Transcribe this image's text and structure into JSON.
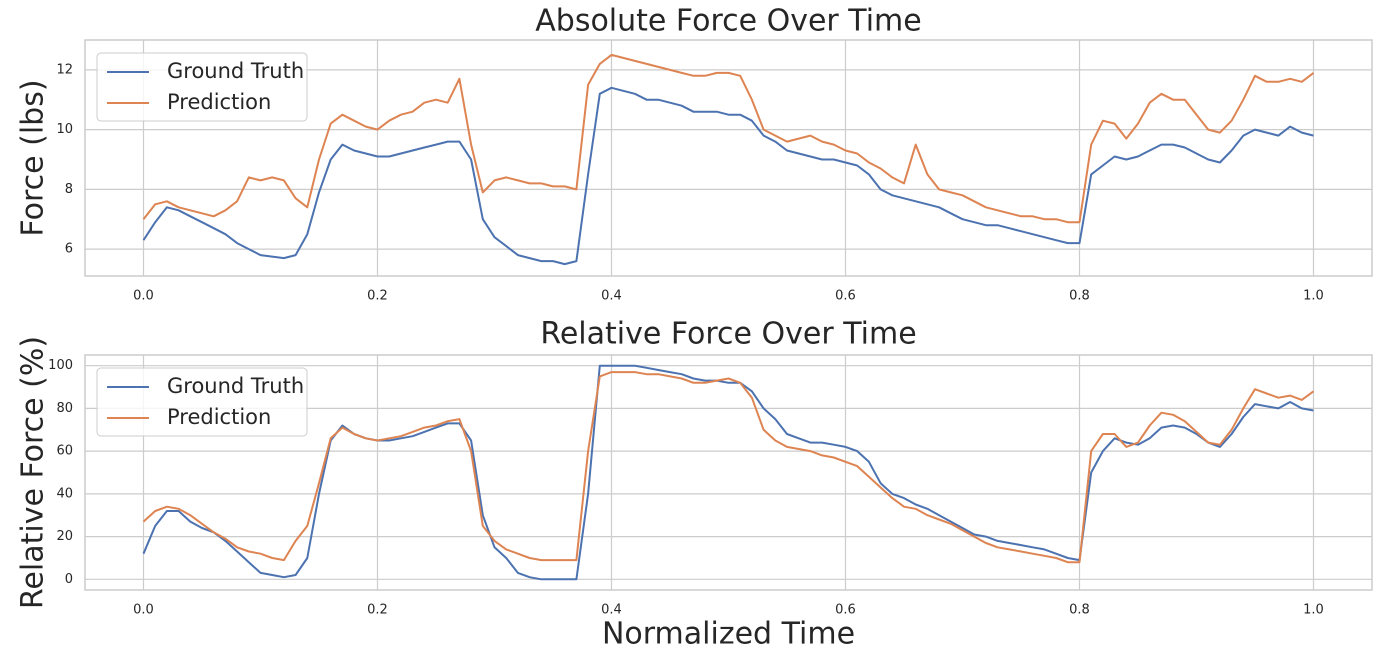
{
  "chart_data": [
    {
      "type": "line",
      "title": "Absolute Force Over Time",
      "ylabel": "Force (lbs)",
      "x": [
        0,
        0.01,
        0.02,
        0.03,
        0.04,
        0.05,
        0.06,
        0.07,
        0.08,
        0.09,
        0.1,
        0.11,
        0.12,
        0.13,
        0.14,
        0.15,
        0.16,
        0.17,
        0.18,
        0.19,
        0.2,
        0.21,
        0.22,
        0.23,
        0.24,
        0.25,
        0.26,
        0.27,
        0.28,
        0.29,
        0.3,
        0.31,
        0.32,
        0.33,
        0.34,
        0.35,
        0.36,
        0.37,
        0.38,
        0.39,
        0.4,
        0.41,
        0.42,
        0.43,
        0.44,
        0.45,
        0.46,
        0.47,
        0.48,
        0.49,
        0.5,
        0.51,
        0.52,
        0.53,
        0.54,
        0.55,
        0.56,
        0.57,
        0.58,
        0.59,
        0.6,
        0.61,
        0.62,
        0.63,
        0.64,
        0.65,
        0.66,
        0.67,
        0.68,
        0.69,
        0.7,
        0.71,
        0.72,
        0.73,
        0.74,
        0.75,
        0.76,
        0.77,
        0.78,
        0.79,
        0.8,
        0.81,
        0.82,
        0.83,
        0.84,
        0.85,
        0.86,
        0.87,
        0.88,
        0.89,
        0.9,
        0.91,
        0.92,
        0.93,
        0.94,
        0.95,
        0.96,
        0.97,
        0.98,
        0.99,
        1
      ],
      "series": [
        {
          "name": "Ground Truth",
          "color": "#4c72b0",
          "values": [
            6.3,
            6.9,
            7.4,
            7.3,
            7.1,
            6.9,
            6.7,
            6.5,
            6.2,
            6.0,
            5.8,
            5.75,
            5.7,
            5.8,
            6.5,
            7.9,
            9.0,
            9.5,
            9.3,
            9.2,
            9.1,
            9.1,
            9.2,
            9.3,
            9.4,
            9.5,
            9.6,
            9.6,
            9.0,
            7.0,
            6.4,
            6.1,
            5.8,
            5.7,
            5.6,
            5.6,
            5.5,
            5.6,
            8.5,
            11.2,
            11.4,
            11.3,
            11.2,
            11.0,
            11.0,
            10.9,
            10.8,
            10.6,
            10.6,
            10.6,
            10.5,
            10.5,
            10.3,
            9.8,
            9.6,
            9.3,
            9.2,
            9.1,
            9.0,
            9.0,
            8.9,
            8.8,
            8.5,
            8.0,
            7.8,
            7.7,
            7.6,
            7.5,
            7.4,
            7.2,
            7.0,
            6.9,
            6.8,
            6.8,
            6.7,
            6.6,
            6.5,
            6.4,
            6.3,
            6.2,
            6.2,
            8.5,
            8.8,
            9.1,
            9.0,
            9.1,
            9.3,
            9.5,
            9.5,
            9.4,
            9.2,
            9.0,
            8.9,
            9.3,
            9.8,
            10.0,
            9.9,
            9.8,
            10.1,
            9.9,
            9.8
          ]
        },
        {
          "name": "Prediction",
          "color": "#dd8452",
          "values": [
            7.0,
            7.5,
            7.6,
            7.4,
            7.3,
            7.2,
            7.1,
            7.3,
            7.6,
            8.4,
            8.3,
            8.4,
            8.3,
            7.7,
            7.4,
            9.0,
            10.2,
            10.5,
            10.3,
            10.1,
            10.0,
            10.3,
            10.5,
            10.6,
            10.9,
            11.0,
            10.9,
            11.7,
            9.5,
            7.9,
            8.3,
            8.4,
            8.3,
            8.2,
            8.2,
            8.1,
            8.1,
            8.0,
            11.5,
            12.2,
            12.5,
            12.4,
            12.3,
            12.2,
            12.1,
            12.0,
            11.9,
            11.8,
            11.8,
            11.9,
            11.9,
            11.8,
            11.0,
            10.0,
            9.8,
            9.6,
            9.7,
            9.8,
            9.6,
            9.5,
            9.3,
            9.2,
            8.9,
            8.7,
            8.4,
            8.2,
            9.5,
            8.5,
            8.0,
            7.9,
            7.8,
            7.6,
            7.4,
            7.3,
            7.2,
            7.1,
            7.1,
            7.0,
            7.0,
            6.9,
            6.9,
            9.5,
            10.3,
            10.2,
            9.7,
            10.2,
            10.9,
            11.2,
            11.0,
            11.0,
            10.5,
            10.0,
            9.9,
            10.3,
            11.0,
            11.8,
            11.6,
            11.6,
            11.7,
            11.6,
            11.9
          ]
        }
      ],
      "xlim": [
        -0.05,
        1.05
      ],
      "xticks": [
        {
          "value": 0,
          "label": "0.0"
        },
        0.2,
        0.4,
        0.6,
        0.8,
        {
          "value": 1,
          "label": "1.0"
        }
      ],
      "ylim": [
        5.1,
        13.0
      ],
      "yticks": [
        6,
        8,
        10,
        12
      ],
      "grid": true,
      "legend": "upper left"
    },
    {
      "type": "line",
      "title": "Relative Force Over Time",
      "ylabel": "Relative Force (%)",
      "xlabel": "Normalized Time",
      "x": [
        0,
        0.01,
        0.02,
        0.03,
        0.04,
        0.05,
        0.06,
        0.07,
        0.08,
        0.09,
        0.1,
        0.11,
        0.12,
        0.13,
        0.14,
        0.15,
        0.16,
        0.17,
        0.18,
        0.19,
        0.2,
        0.21,
        0.22,
        0.23,
        0.24,
        0.25,
        0.26,
        0.27,
        0.28,
        0.29,
        0.3,
        0.31,
        0.32,
        0.33,
        0.34,
        0.35,
        0.36,
        0.37,
        0.38,
        0.39,
        0.4,
        0.41,
        0.42,
        0.43,
        0.44,
        0.45,
        0.46,
        0.47,
        0.48,
        0.49,
        0.5,
        0.51,
        0.52,
        0.53,
        0.54,
        0.55,
        0.56,
        0.57,
        0.58,
        0.59,
        0.6,
        0.61,
        0.62,
        0.63,
        0.64,
        0.65,
        0.66,
        0.67,
        0.68,
        0.69,
        0.7,
        0.71,
        0.72,
        0.73,
        0.74,
        0.75,
        0.76,
        0.77,
        0.78,
        0.79,
        0.8,
        0.81,
        0.82,
        0.83,
        0.84,
        0.85,
        0.86,
        0.87,
        0.88,
        0.89,
        0.9,
        0.91,
        0.92,
        0.93,
        0.94,
        0.95,
        0.96,
        0.97,
        0.98,
        0.99,
        1
      ],
      "series": [
        {
          "name": "Ground Truth",
          "color": "#4c72b0",
          "values": [
            12,
            25,
            32,
            32,
            27,
            24,
            22,
            18,
            13,
            8,
            3,
            2,
            1,
            2,
            10,
            40,
            65,
            72,
            68,
            66,
            65,
            65,
            66,
            67,
            69,
            71,
            73,
            73,
            65,
            30,
            15,
            10,
            3,
            1,
            0,
            0,
            0,
            0,
            40,
            100,
            100,
            100,
            100,
            99,
            98,
            97,
            96,
            94,
            93,
            93,
            92,
            92,
            88,
            80,
            75,
            68,
            66,
            64,
            64,
            63,
            62,
            60,
            55,
            45,
            40,
            38,
            35,
            33,
            30,
            27,
            24,
            21,
            20,
            18,
            17,
            16,
            15,
            14,
            12,
            10,
            9,
            50,
            60,
            66,
            64,
            63,
            66,
            71,
            72,
            71,
            68,
            64,
            62,
            68,
            76,
            82,
            81,
            80,
            83,
            80,
            79
          ]
        },
        {
          "name": "Prediction",
          "color": "#dd8452",
          "values": [
            27,
            32,
            34,
            33,
            30,
            26,
            22,
            19,
            15,
            13,
            12,
            10,
            9,
            18,
            25,
            45,
            66,
            71,
            68,
            66,
            65,
            66,
            67,
            69,
            71,
            72,
            74,
            75,
            60,
            25,
            18,
            14,
            12,
            10,
            9,
            9,
            9,
            9,
            60,
            95,
            97,
            97,
            97,
            96,
            96,
            95,
            94,
            92,
            92,
            93,
            94,
            92,
            85,
            70,
            65,
            62,
            61,
            60,
            58,
            57,
            55,
            53,
            48,
            43,
            38,
            34,
            33,
            30,
            28,
            26,
            23,
            20,
            17,
            15,
            14,
            13,
            12,
            11,
            10,
            8,
            8,
            60,
            68,
            68,
            62,
            64,
            72,
            78,
            77,
            74,
            69,
            64,
            63,
            70,
            80,
            89,
            87,
            85,
            86,
            84,
            88
          ]
        }
      ],
      "xlim": [
        -0.05,
        1.05
      ],
      "xticks": [
        {
          "value": 0,
          "label": "0.0"
        },
        0.2,
        0.4,
        0.6,
        0.8,
        {
          "value": 1,
          "label": "1.0"
        }
      ],
      "ylim": [
        -5,
        105
      ],
      "yticks": [
        0,
        20,
        40,
        60,
        80,
        100
      ],
      "grid": true,
      "legend": "upper left"
    }
  ]
}
